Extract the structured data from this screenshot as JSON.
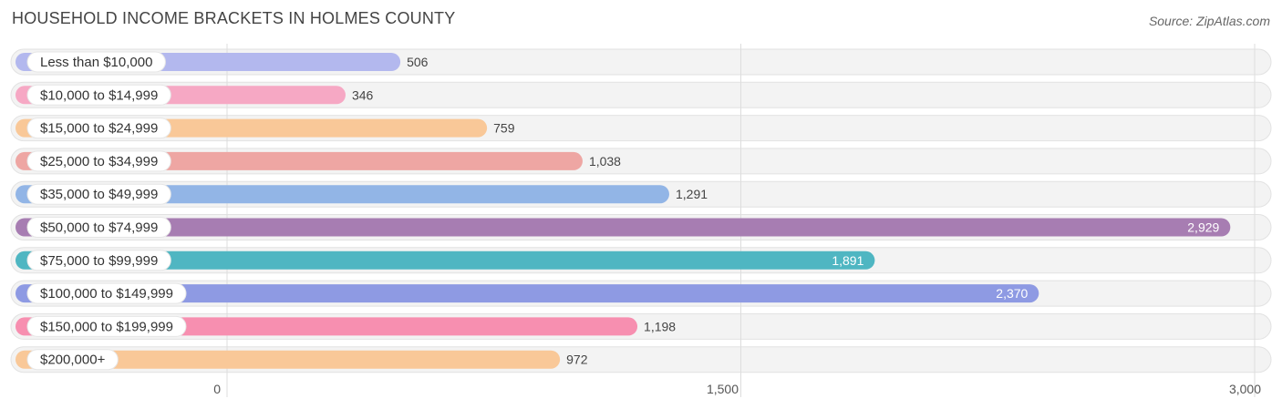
{
  "header": {
    "title": "HOUSEHOLD INCOME BRACKETS IN HOLMES COUNTY",
    "source": "Source: ZipAtlas.com"
  },
  "chart_data": {
    "type": "bar",
    "orientation": "horizontal",
    "title": "HOUSEHOLD INCOME BRACKETS IN HOLMES COUNTY",
    "xlabel": "",
    "ylabel": "",
    "xlim": [
      0,
      3000
    ],
    "ticks": [
      0,
      1500,
      3000
    ],
    "tick_labels": [
      "0",
      "1,500",
      "3,000"
    ],
    "grid": true,
    "categories": [
      "Less than $10,000",
      "$10,000 to $14,999",
      "$15,000 to $24,999",
      "$25,000 to $34,999",
      "$35,000 to $49,999",
      "$50,000 to $74,999",
      "$75,000 to $99,999",
      "$100,000 to $149,999",
      "$150,000 to $199,999",
      "$200,000+"
    ],
    "values": [
      506,
      346,
      759,
      1038,
      1291,
      2929,
      1891,
      2370,
      1198,
      972
    ],
    "value_labels": [
      "506",
      "346",
      "759",
      "1,038",
      "1,291",
      "2,929",
      "1,891",
      "2,370",
      "1,198",
      "972"
    ],
    "colors": [
      "#b3b8ee",
      "#f6a8c4",
      "#f9c898",
      "#eea6a3",
      "#92b5e6",
      "#a77db2",
      "#4fb6c2",
      "#8e9ae3",
      "#f78fb0",
      "#f9c898"
    ]
  }
}
